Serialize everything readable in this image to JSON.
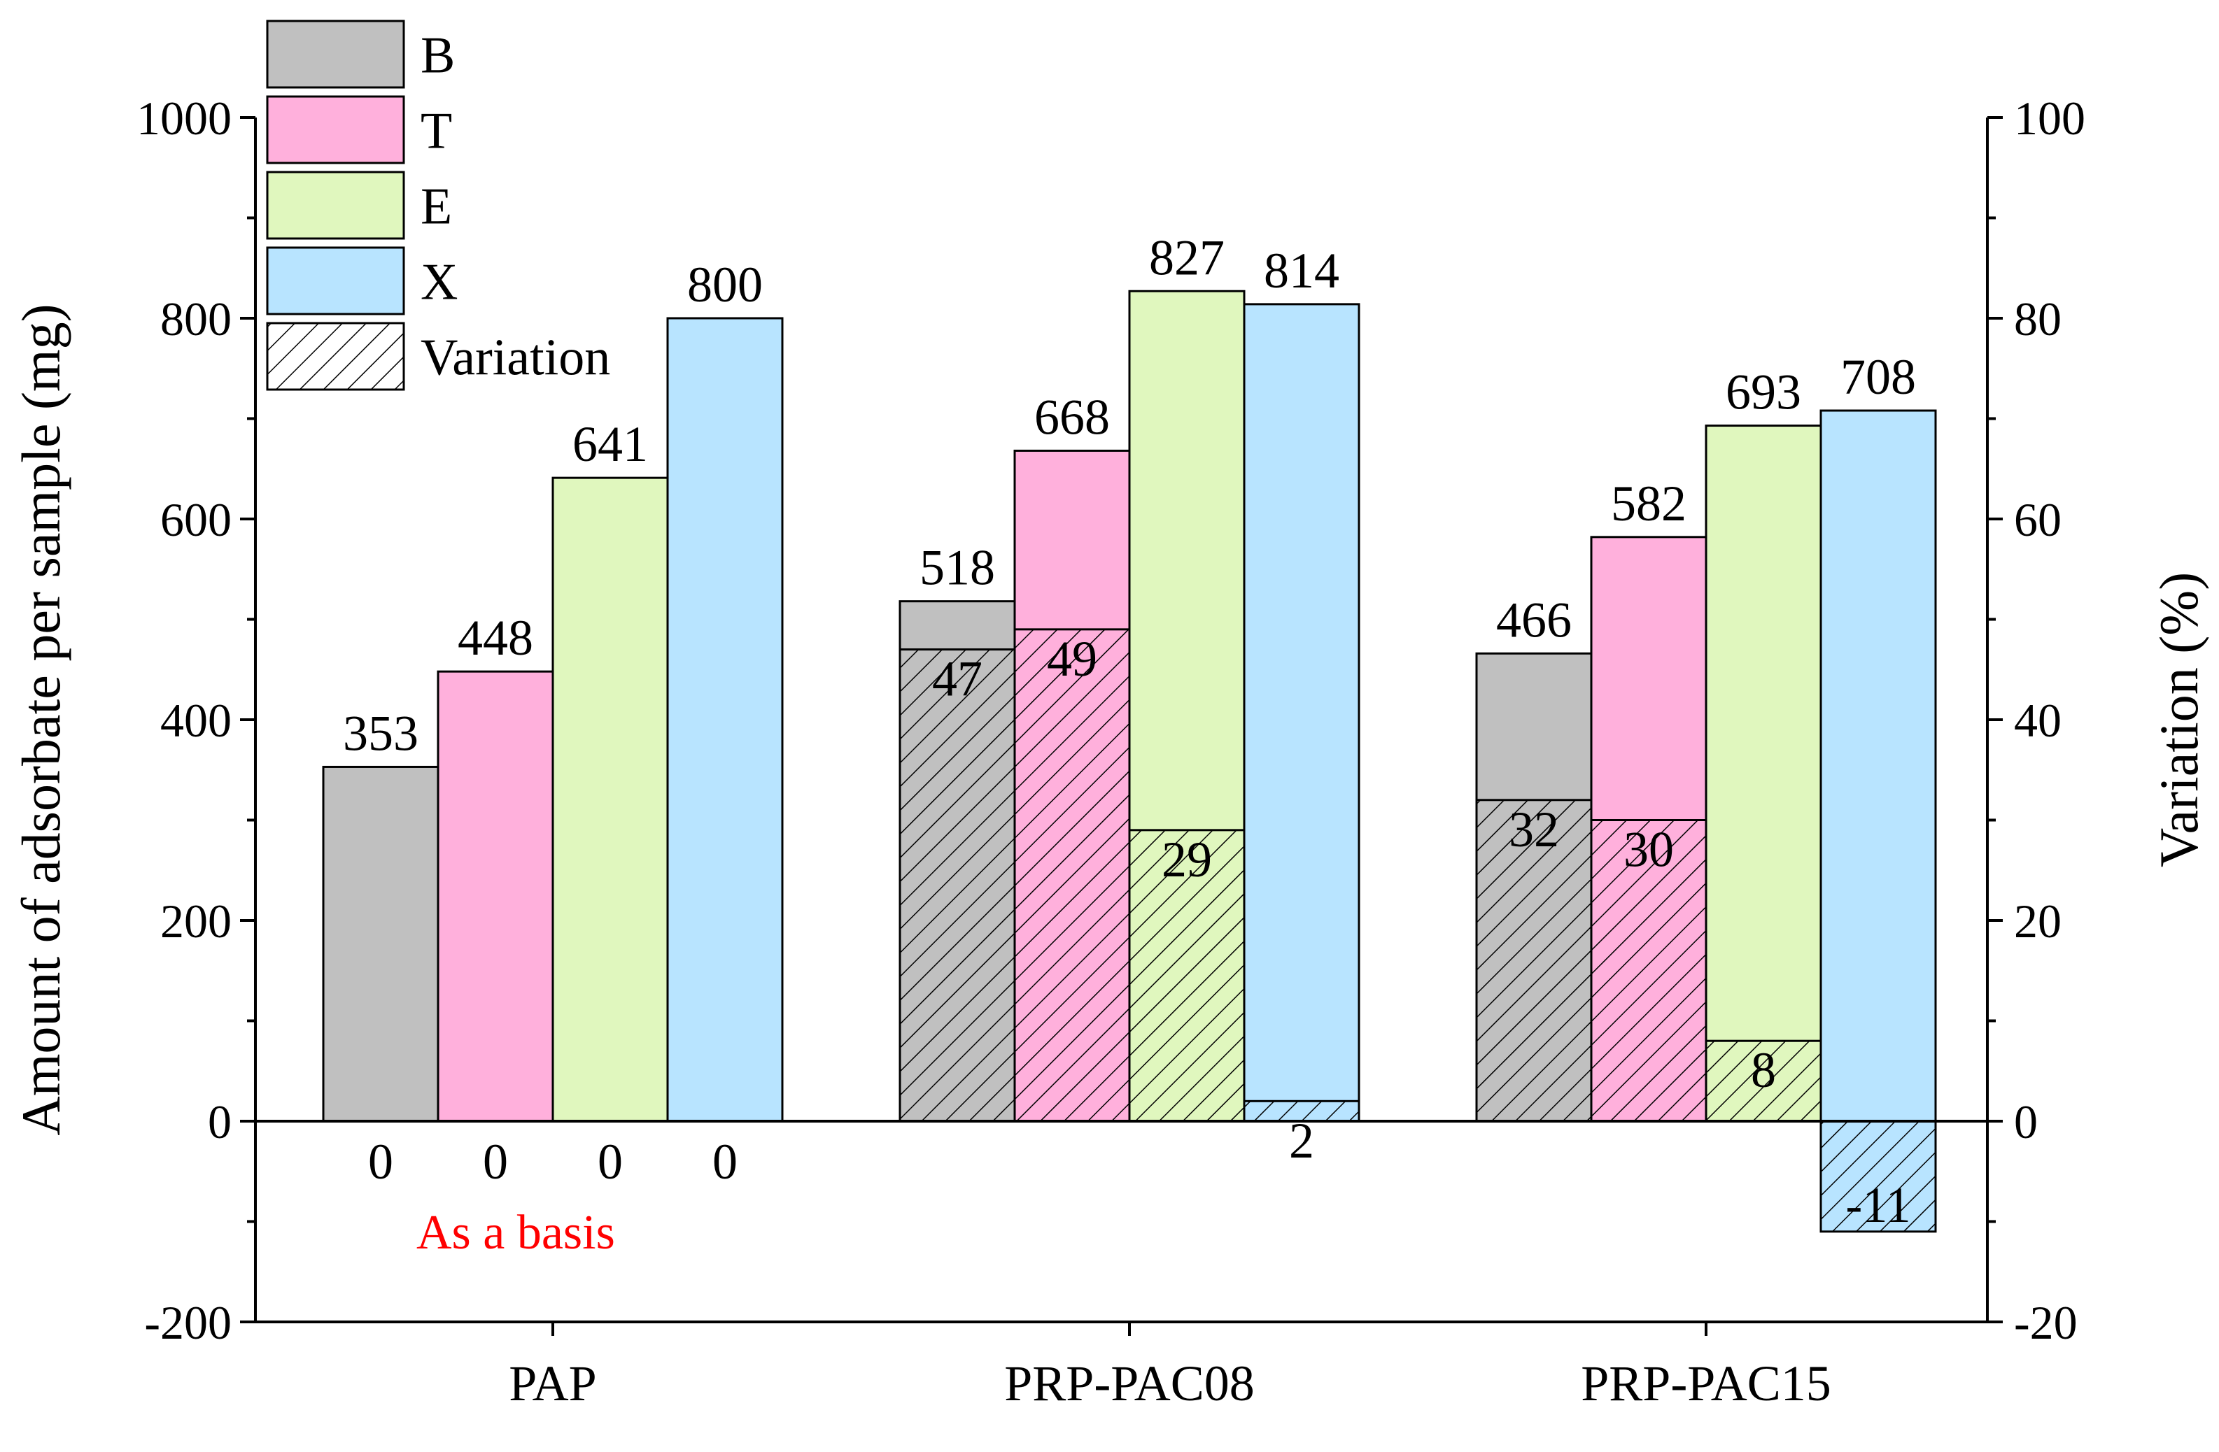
{
  "chart_data": {
    "type": "bar",
    "categories": [
      "PAP",
      "PRP-PAC08",
      "PRP-PAC15"
    ],
    "series": [
      {
        "name": "B",
        "color": "#c0c0c0",
        "values": [
          353,
          518,
          466
        ],
        "variation": [
          0,
          47,
          32
        ]
      },
      {
        "name": "T",
        "color": "#ffb0dc",
        "values": [
          448,
          668,
          582
        ],
        "variation": [
          0,
          49,
          30
        ]
      },
      {
        "name": "E",
        "color": "#e0f7be",
        "values": [
          641,
          827,
          693
        ],
        "variation": [
          0,
          29,
          8
        ]
      },
      {
        "name": "X",
        "color": "#b8e4ff",
        "values": [
          800,
          814,
          708
        ],
        "variation": [
          0,
          2,
          -11
        ]
      }
    ],
    "variation_legend": "Variation",
    "ylabel": "Amount of adsorbate per sample (mg)",
    "y2label": "Variation (%)",
    "ylim": [
      -200,
      1000
    ],
    "y2lim": [
      -20,
      100
    ],
    "yticks": [
      "-200",
      "0",
      "200",
      "400",
      "600",
      "800",
      "1000"
    ],
    "y2ticks": [
      "-20",
      "0",
      "20",
      "40",
      "60",
      "80",
      "100"
    ],
    "annotation": {
      "text": "As a basis",
      "color": "#ff0000"
    },
    "legend_position": "top-left"
  }
}
